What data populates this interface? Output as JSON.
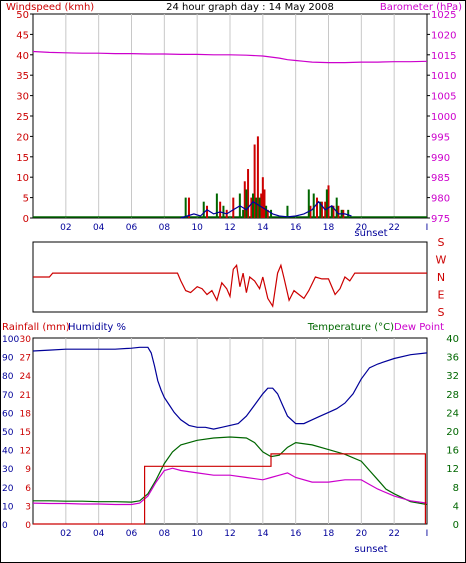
{
  "colors": {
    "red": "#cc0000",
    "magenta": "#cc00cc",
    "blue": "#000099",
    "green": "#006600",
    "axis_blue": "#000099",
    "grid": "#c8c8c8",
    "frame": "#000000"
  },
  "chart_data": [
    {
      "type": "line",
      "title": "24 hour graph day : 14 May 2008",
      "left_label": "Windspeed (kmh)",
      "right_label": "Barometer (hPa)",
      "left_ticks": [
        0,
        5,
        10,
        15,
        20,
        25,
        30,
        35,
        40,
        45,
        50
      ],
      "right_ticks": [
        975,
        980,
        985,
        990,
        995,
        1000,
        1005,
        1010,
        1015,
        1020,
        1025
      ],
      "ylim_left": [
        0,
        50
      ],
      "ylim_right": [
        975,
        1025
      ],
      "x_ticks": [
        "02",
        "04",
        "06",
        "08",
        "10",
        "12",
        "14",
        "16",
        "18",
        "20",
        "22",
        "I"
      ],
      "sunset_label": "sunset",
      "xlim": [
        0,
        24
      ],
      "grid": true,
      "series": [
        {
          "color": "#cc00cc",
          "axis": "right",
          "x": [
            0,
            1,
            2,
            3,
            4,
            5,
            6,
            7,
            8,
            9,
            10,
            11,
            12,
            13,
            14,
            15,
            15.5,
            16,
            16.5,
            17,
            18,
            19,
            20,
            21,
            22,
            23,
            24
          ],
          "y": [
            1015.8,
            1015.6,
            1015.5,
            1015.4,
            1015.4,
            1015.3,
            1015.3,
            1015.2,
            1015.2,
            1015.1,
            1015.1,
            1015.0,
            1015.0,
            1014.9,
            1014.7,
            1014.2,
            1013.8,
            1013.6,
            1013.4,
            1013.2,
            1013.1,
            1013.1,
            1013.2,
            1013.2,
            1013.3,
            1013.3,
            1013.4
          ]
        },
        {
          "color": "#cc0000",
          "axis": "left",
          "style": "spikes",
          "x": [
            9.5,
            10.6,
            11.4,
            11.8,
            12.2,
            12.9,
            13.1,
            13.3,
            13.5,
            13.7,
            13.9,
            14.0,
            14.1,
            14.3,
            16.9,
            17.3,
            17.6,
            17.8,
            18.0,
            18.3,
            18.6,
            18.9
          ],
          "y": [
            5,
            3,
            4,
            2,
            5,
            9,
            12,
            5,
            18,
            20,
            6,
            10,
            7,
            2,
            3,
            5,
            4,
            4,
            8,
            3,
            3,
            2
          ]
        },
        {
          "color": "#006600",
          "axis": "left",
          "style": "spikes",
          "x": [
            9.3,
            10.4,
            11.2,
            11.6,
            12.6,
            12.8,
            13.0,
            13.4,
            13.6,
            13.8,
            14.2,
            14.5,
            15.5,
            16.8,
            17.1,
            17.5,
            17.9,
            18.2,
            18.5,
            18.8,
            19.2
          ],
          "y": [
            5,
            4,
            6,
            3,
            6,
            2,
            7,
            6,
            5,
            5,
            3,
            2,
            3,
            7,
            6,
            4,
            7,
            3,
            5,
            2,
            2
          ]
        },
        {
          "color": "#000099",
          "axis": "left",
          "x": [
            9.0,
            9.4,
            9.8,
            10.2,
            10.6,
            11.0,
            11.4,
            11.8,
            12.2,
            12.6,
            13.0,
            13.4,
            13.8,
            14.2,
            14.6,
            15.0,
            15.5,
            16.0,
            16.5,
            17.0,
            17.4,
            17.8,
            18.2,
            18.6,
            19.0,
            19.4
          ],
          "y": [
            0,
            0.5,
            1,
            0.5,
            2,
            1,
            1.5,
            1,
            2,
            3,
            2,
            4,
            3,
            2,
            1,
            0.5,
            0.3,
            0.5,
            1,
            2,
            4,
            2,
            3,
            1,
            1,
            0.5
          ]
        }
      ]
    },
    {
      "type": "line",
      "right_ticks": [
        "S",
        "E",
        "N",
        "W",
        "S"
      ],
      "ylim": [
        0,
        360
      ],
      "xlim": [
        0,
        24
      ],
      "series": [
        {
          "color": "#cc0000",
          "x": [
            0,
            0.5,
            1.0,
            1.2,
            2,
            4,
            6,
            7,
            8,
            8.8,
            9.0,
            9.3,
            9.6,
            10.0,
            10.3,
            10.6,
            10.9,
            11.2,
            11.5,
            11.8,
            12.0,
            12.2,
            12.4,
            12.6,
            12.8,
            13.0,
            13.2,
            13.5,
            13.8,
            14.0,
            14.3,
            14.6,
            14.9,
            15.1,
            15.3,
            15.6,
            15.9,
            16.2,
            16.5,
            16.8,
            17.2,
            17.6,
            18.0,
            18.4,
            18.7,
            19.0,
            19.3,
            19.6,
            19.9,
            20.2,
            21,
            22,
            23,
            24
          ],
          "y": [
            180,
            180,
            180,
            200,
            200,
            200,
            200,
            200,
            200,
            200,
            160,
            110,
            100,
            130,
            120,
            90,
            110,
            60,
            150,
            120,
            80,
            220,
            240,
            130,
            200,
            100,
            180,
            160,
            120,
            180,
            70,
            30,
            200,
            240,
            170,
            60,
            110,
            90,
            70,
            110,
            180,
            170,
            170,
            90,
            120,
            180,
            160,
            200,
            200,
            200,
            200,
            200,
            200,
            200
          ]
        }
      ]
    },
    {
      "type": "line",
      "left_label_1": "Rainfall (mm)",
      "left_label_2": "Humidity %",
      "right_label_1": "Temperature (°C)",
      "right_label_2": "Dew Point",
      "rain_ticks": [
        0,
        3,
        6,
        9,
        12,
        15,
        18,
        21,
        24,
        27,
        30
      ],
      "humidity_ticks": [
        0,
        10,
        20,
        30,
        40,
        50,
        60,
        70,
        80,
        90,
        100
      ],
      "temp_ticks": [
        0,
        4,
        8,
        12,
        16,
        20,
        24,
        28,
        32,
        36,
        40
      ],
      "ylim_rain": [
        0,
        30
      ],
      "ylim_humidity": [
        0,
        100
      ],
      "ylim_temp": [
        0,
        40
      ],
      "x_ticks": [
        "02",
        "04",
        "06",
        "08",
        "10",
        "12",
        "14",
        "16",
        "18",
        "20",
        "22",
        "I"
      ],
      "sunset_label": "sunset",
      "xlim": [
        0,
        24
      ],
      "grid": true,
      "series": [
        {
          "color": "#000099",
          "axis": "humidity",
          "x": [
            0,
            1,
            2,
            3,
            4,
            5,
            6,
            6.5,
            7,
            7.2,
            7.4,
            7.6,
            7.8,
            8.0,
            8.3,
            8.6,
            9,
            9.5,
            10,
            10.5,
            11,
            11.5,
            12,
            12.5,
            13,
            13.5,
            14,
            14.3,
            14.6,
            14.9,
            15.2,
            15.5,
            16.0,
            16.5,
            17,
            17.5,
            18,
            18.5,
            19,
            19.5,
            20,
            20.5,
            21,
            22,
            23,
            24
          ],
          "y": [
            93,
            93.5,
            94,
            94,
            94,
            94,
            94.5,
            95,
            95,
            92,
            85,
            77,
            72,
            68,
            64,
            60,
            56,
            53,
            52,
            52,
            51,
            52,
            53,
            54,
            58,
            64,
            70,
            73,
            73,
            70,
            64,
            58,
            54,
            54,
            56,
            58,
            60,
            62,
            65,
            70,
            78,
            84,
            86,
            89,
            91,
            92
          ]
        },
        {
          "color": "#006600",
          "axis": "temp",
          "x": [
            0,
            1,
            2,
            3,
            4,
            5,
            6,
            6.5,
            7,
            7.5,
            8,
            8.5,
            9,
            10,
            11,
            12,
            13,
            13.5,
            14,
            14.5,
            15,
            15.5,
            16,
            17,
            18,
            19,
            20,
            20.5,
            21,
            21.5,
            22,
            23,
            24
          ],
          "y": [
            5.0,
            5.0,
            4.9,
            4.9,
            4.8,
            4.8,
            4.7,
            5.0,
            6.5,
            9.5,
            13.0,
            15.5,
            17.0,
            18.0,
            18.5,
            18.7,
            18.5,
            17.5,
            15.5,
            14.5,
            14.8,
            16.5,
            17.5,
            17.0,
            16.0,
            15.0,
            13.5,
            11.5,
            9.5,
            7.5,
            6.5,
            4.8,
            4.2
          ]
        },
        {
          "color": "#cc00cc",
          "axis": "temp",
          "x": [
            0,
            1,
            2,
            3,
            4,
            5,
            6,
            6.5,
            7,
            7.5,
            8,
            8.5,
            9,
            10,
            11,
            12,
            13,
            14,
            14.5,
            15,
            15.5,
            16,
            17,
            18,
            19,
            20,
            20.5,
            21,
            22,
            23,
            24
          ],
          "y": [
            4.5,
            4.4,
            4.4,
            4.3,
            4.3,
            4.2,
            4.2,
            4.5,
            6.0,
            9.0,
            11.5,
            12.0,
            11.5,
            11.0,
            10.5,
            10.5,
            10.0,
            9.5,
            10.0,
            10.5,
            11.0,
            10.0,
            9.0,
            9.0,
            9.5,
            9.5,
            8.5,
            7.5,
            6.0,
            5.0,
            4.5
          ]
        },
        {
          "color": "#cc0000",
          "axis": "rain",
          "step": true,
          "x": [
            0,
            6.8,
            6.8,
            14.5,
            14.5,
            23.9,
            23.9
          ],
          "y": [
            0,
            0,
            9.3,
            9.3,
            11.3,
            11.3,
            0
          ]
        }
      ]
    }
  ]
}
